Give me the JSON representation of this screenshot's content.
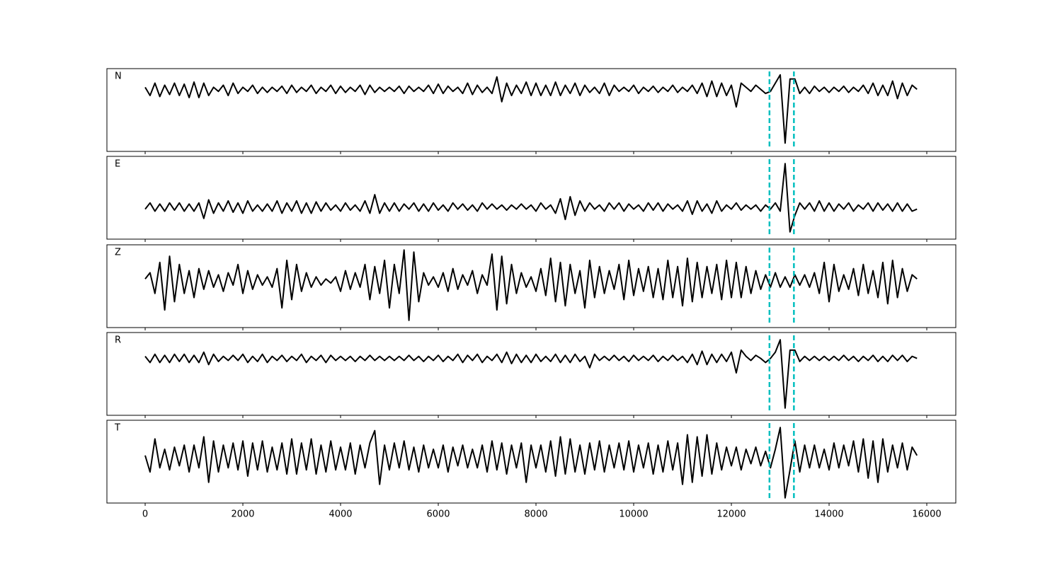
{
  "chart_data": {
    "type": "line",
    "line_color": "#000000",
    "vline_color": "#00bfbf",
    "xlim": [
      -783,
      16594
    ],
    "xticks": [
      0,
      2000,
      4000,
      6000,
      8000,
      10000,
      12000,
      14000,
      16000
    ],
    "vlines": [
      12780,
      13280
    ],
    "x": [
      0,
      100,
      200,
      300,
      400,
      500,
      600,
      700,
      800,
      900,
      1000,
      1100,
      1200,
      1300,
      1400,
      1500,
      1600,
      1700,
      1800,
      1900,
      2000,
      2100,
      2200,
      2300,
      2400,
      2500,
      2600,
      2700,
      2800,
      2900,
      3000,
      3100,
      3200,
      3300,
      3400,
      3500,
      3600,
      3700,
      3800,
      3900,
      4000,
      4100,
      4200,
      4300,
      4400,
      4500,
      4600,
      4700,
      4800,
      4900,
      5000,
      5100,
      5200,
      5300,
      5400,
      5500,
      5600,
      5700,
      5800,
      5900,
      6000,
      6100,
      6200,
      6300,
      6400,
      6500,
      6600,
      6700,
      6800,
      6900,
      7000,
      7100,
      7200,
      7300,
      7400,
      7500,
      7600,
      7700,
      7800,
      7900,
      8000,
      8100,
      8200,
      8300,
      8400,
      8500,
      8600,
      8700,
      8800,
      8900,
      9000,
      9100,
      9200,
      9300,
      9400,
      9500,
      9600,
      9700,
      9800,
      9900,
      10000,
      10100,
      10200,
      10300,
      10400,
      10500,
      10600,
      10700,
      10800,
      10900,
      11000,
      11100,
      11200,
      11300,
      11400,
      11500,
      11600,
      11700,
      11800,
      11900,
      12000,
      12100,
      12200,
      12300,
      12400,
      12500,
      12600,
      12700,
      12800,
      12900,
      13000,
      13100,
      13200,
      13300,
      13400,
      13500,
      13600,
      13700,
      13800,
      13900,
      14000,
      14100,
      14200,
      14300,
      14400,
      14500,
      14600,
      14700,
      14800,
      14900,
      15000,
      15100,
      15200,
      15300,
      15400,
      15500,
      15600,
      15700,
      15800
    ],
    "panels": [
      {
        "label": "N",
        "ylim": [
          -3,
          1
        ],
        "values": [
          0.1,
          -0.3,
          0.3,
          -0.35,
          0.2,
          -0.25,
          0.3,
          -0.3,
          0.25,
          -0.4,
          0.35,
          -0.4,
          0.3,
          -0.3,
          0.1,
          -0.1,
          0.2,
          -0.3,
          0.3,
          -0.2,
          0.1,
          -0.1,
          0.2,
          -0.2,
          0.1,
          -0.15,
          0.1,
          -0.1,
          0.15,
          -0.2,
          0.2,
          -0.15,
          0.1,
          -0.1,
          0.2,
          -0.2,
          0.1,
          -0.1,
          0.2,
          -0.2,
          0.15,
          -0.15,
          0.1,
          -0.1,
          0.2,
          -0.25,
          0.2,
          -0.15,
          0.1,
          -0.1,
          0.1,
          -0.1,
          0.15,
          -0.2,
          0.15,
          -0.1,
          0.1,
          -0.1,
          0.2,
          -0.2,
          0.25,
          -0.2,
          0.15,
          -0.1,
          0.1,
          -0.2,
          0.3,
          -0.25,
          0.2,
          -0.15,
          0.1,
          -0.2,
          0.6,
          -0.6,
          0.3,
          -0.3,
          0.2,
          -0.2,
          0.35,
          -0.3,
          0.3,
          -0.3,
          0.2,
          -0.3,
          0.35,
          -0.3,
          0.2,
          -0.2,
          0.3,
          -0.3,
          0.2,
          -0.15,
          0.1,
          -0.2,
          0.3,
          -0.3,
          0.2,
          -0.1,
          0.1,
          -0.1,
          0.2,
          -0.2,
          0.1,
          -0.1,
          0.15,
          -0.15,
          0.1,
          -0.1,
          0.2,
          -0.15,
          0.1,
          -0.1,
          0.2,
          -0.2,
          0.3,
          -0.35,
          0.4,
          -0.35,
          0.3,
          -0.3,
          0.2,
          -0.85,
          0.3,
          0.1,
          -0.1,
          0.2,
          0.0,
          -0.2,
          -0.1,
          0.3,
          0.7,
          -2.6,
          0.5,
          0.5,
          -0.2,
          0.1,
          -0.2,
          0.15,
          -0.1,
          0.1,
          -0.15,
          0.1,
          -0.1,
          0.15,
          -0.15,
          0.1,
          -0.1,
          0.2,
          -0.2,
          0.3,
          -0.3,
          0.2,
          -0.3,
          0.4,
          -0.45,
          0.3,
          -0.3,
          0.2,
          0.0
        ]
      },
      {
        "label": "E",
        "ylim": [
          -1.55,
          2.45
        ],
        "values": [
          -0.1,
          0.2,
          -0.2,
          0.15,
          -0.2,
          0.2,
          -0.15,
          0.2,
          -0.2,
          0.15,
          -0.2,
          0.2,
          -0.55,
          0.35,
          -0.3,
          0.2,
          -0.2,
          0.3,
          -0.25,
          0.2,
          -0.3,
          0.3,
          -0.2,
          0.1,
          -0.2,
          0.15,
          -0.2,
          0.3,
          -0.3,
          0.2,
          -0.2,
          0.3,
          -0.3,
          0.2,
          -0.3,
          0.25,
          -0.2,
          0.2,
          -0.15,
          0.1,
          -0.2,
          0.2,
          -0.15,
          0.1,
          -0.2,
          0.3,
          -0.3,
          0.6,
          -0.3,
          0.2,
          -0.2,
          0.2,
          -0.2,
          0.15,
          -0.1,
          0.2,
          -0.2,
          0.15,
          -0.2,
          0.2,
          -0.15,
          0.1,
          -0.2,
          0.2,
          -0.1,
          0.15,
          -0.15,
          0.1,
          -0.2,
          0.2,
          -0.1,
          0.15,
          -0.1,
          0.1,
          -0.15,
          0.1,
          -0.1,
          0.15,
          -0.1,
          0.1,
          -0.2,
          0.2,
          -0.1,
          0.1,
          -0.3,
          0.4,
          -0.6,
          0.5,
          -0.4,
          0.3,
          -0.2,
          0.2,
          -0.1,
          0.1,
          -0.2,
          0.2,
          -0.1,
          0.2,
          -0.2,
          0.15,
          -0.1,
          0.1,
          -0.2,
          0.2,
          -0.15,
          0.2,
          -0.2,
          0.15,
          -0.1,
          0.1,
          -0.2,
          0.3,
          -0.35,
          0.3,
          -0.2,
          0.15,
          -0.3,
          0.3,
          -0.2,
          0.1,
          -0.1,
          0.2,
          -0.15,
          0.1,
          -0.1,
          0.1,
          -0.2,
          0.1,
          -0.1,
          0.2,
          -0.2,
          2.1,
          -1.2,
          -0.4,
          0.2,
          -0.1,
          0.2,
          -0.2,
          0.3,
          -0.2,
          0.2,
          -0.2,
          0.15,
          -0.1,
          0.2,
          -0.2,
          0.1,
          -0.1,
          0.2,
          -0.2,
          0.2,
          -0.15,
          0.15,
          -0.2,
          0.2,
          -0.2,
          0.15,
          -0.2,
          -0.1
        ]
      },
      {
        "label": "Z",
        "ylim": [
          -2.25,
          1.75
        ],
        "values": [
          0.1,
          0.4,
          -0.6,
          0.9,
          -1.4,
          1.2,
          -1.0,
          0.8,
          -0.6,
          0.5,
          -0.8,
          0.6,
          -0.4,
          0.5,
          -0.3,
          0.3,
          -0.5,
          0.4,
          -0.2,
          0.8,
          -0.6,
          0.5,
          -0.4,
          0.3,
          -0.2,
          0.2,
          -0.3,
          0.6,
          -1.3,
          1.0,
          -0.9,
          0.8,
          -0.5,
          0.4,
          -0.3,
          0.2,
          -0.2,
          0.1,
          -0.1,
          0.2,
          -0.5,
          0.5,
          -0.4,
          0.4,
          -0.3,
          0.8,
          -0.9,
          0.7,
          -0.6,
          1.0,
          -1.3,
          0.8,
          -0.6,
          1.5,
          -1.9,
          1.4,
          -1.0,
          0.4,
          -0.2,
          0.2,
          -0.3,
          0.4,
          -0.5,
          0.6,
          -0.4,
          0.3,
          -0.2,
          0.5,
          -0.6,
          0.3,
          -0.2,
          1.3,
          -1.4,
          1.2,
          -1.1,
          0.8,
          -0.6,
          0.4,
          -0.3,
          0.2,
          -0.5,
          0.6,
          -0.7,
          1.1,
          -1.0,
          0.9,
          -1.2,
          0.8,
          -0.6,
          0.5,
          -1.3,
          1.0,
          -0.8,
          0.7,
          -0.6,
          0.5,
          -0.4,
          0.8,
          -0.9,
          1.0,
          -0.7,
          0.6,
          -0.5,
          0.7,
          -0.8,
          0.6,
          -0.9,
          1.0,
          -0.8,
          0.7,
          -1.2,
          1.1,
          -1.0,
          0.9,
          -0.8,
          0.7,
          -0.6,
          0.8,
          -0.9,
          1.0,
          -0.8,
          0.9,
          -0.8,
          0.7,
          -0.6,
          0.5,
          -0.4,
          0.3,
          -0.3,
          0.4,
          -0.3,
          0.2,
          -0.3,
          0.3,
          -0.2,
          0.3,
          -0.3,
          0.4,
          -0.6,
          0.9,
          -1.0,
          0.8,
          -0.5,
          0.3,
          -0.4,
          0.6,
          -0.7,
          0.8,
          -0.6,
          0.5,
          -0.8,
          0.9,
          -1.1,
          1.0,
          -0.8,
          0.6,
          -0.5,
          0.3,
          0.1
        ]
      },
      {
        "label": "R",
        "ylim": [
          -2.75,
          1.25
        ],
        "values": [
          0.1,
          -0.2,
          0.2,
          -0.2,
          0.15,
          -0.2,
          0.2,
          -0.15,
          0.2,
          -0.2,
          0.15,
          -0.2,
          0.3,
          -0.3,
          0.2,
          -0.15,
          0.1,
          -0.1,
          0.15,
          -0.1,
          0.2,
          -0.2,
          0.1,
          -0.15,
          0.2,
          -0.2,
          0.1,
          -0.1,
          0.15,
          -0.15,
          0.1,
          -0.1,
          0.2,
          -0.2,
          0.1,
          -0.1,
          0.15,
          -0.2,
          0.15,
          -0.1,
          0.1,
          -0.1,
          0.1,
          -0.15,
          0.1,
          -0.1,
          0.15,
          -0.1,
          0.1,
          -0.1,
          0.1,
          -0.1,
          0.1,
          -0.1,
          0.15,
          -0.1,
          0.1,
          -0.15,
          0.1,
          -0.1,
          0.15,
          -0.15,
          0.1,
          -0.1,
          0.2,
          -0.2,
          0.15,
          -0.1,
          0.2,
          -0.2,
          0.1,
          -0.1,
          0.2,
          -0.2,
          0.3,
          -0.25,
          0.2,
          -0.2,
          0.15,
          -0.2,
          0.2,
          -0.15,
          0.1,
          -0.15,
          0.2,
          -0.2,
          0.15,
          -0.2,
          0.2,
          -0.15,
          0.1,
          -0.45,
          0.2,
          -0.1,
          0.1,
          -0.1,
          0.15,
          -0.1,
          0.1,
          -0.15,
          0.15,
          -0.1,
          0.1,
          -0.1,
          0.15,
          -0.15,
          0.1,
          -0.1,
          0.15,
          -0.1,
          0.1,
          -0.2,
          0.2,
          -0.3,
          0.35,
          -0.3,
          0.2,
          -0.2,
          0.2,
          -0.15,
          0.3,
          -0.7,
          0.4,
          0.1,
          -0.1,
          0.15,
          0.0,
          -0.2,
          0.0,
          0.3,
          0.9,
          -2.4,
          0.4,
          0.4,
          -0.15,
          0.1,
          -0.1,
          0.1,
          -0.1,
          0.1,
          -0.1,
          0.1,
          -0.1,
          0.15,
          -0.1,
          0.1,
          -0.15,
          0.1,
          -0.1,
          0.15,
          -0.15,
          0.1,
          -0.15,
          0.15,
          -0.1,
          0.15,
          -0.15,
          0.1,
          0.0
        ]
      },
      {
        "label": "T",
        "ylim": [
          -2.2,
          1.8
        ],
        "values": [
          0.1,
          -0.7,
          0.9,
          -0.5,
          0.4,
          -0.6,
          0.5,
          -0.4,
          0.6,
          -0.7,
          0.6,
          -0.5,
          1.0,
          -1.2,
          0.8,
          -0.7,
          0.6,
          -0.5,
          0.7,
          -0.6,
          0.8,
          -0.9,
          0.7,
          -0.6,
          0.8,
          -0.7,
          0.5,
          -0.6,
          0.7,
          -0.8,
          0.9,
          -0.8,
          0.7,
          -0.6,
          0.9,
          -0.8,
          0.6,
          -0.7,
          0.8,
          -0.6,
          0.5,
          -0.6,
          0.7,
          -0.8,
          0.6,
          -0.5,
          0.7,
          1.3,
          -1.3,
          0.6,
          -0.6,
          0.7,
          -0.5,
          0.8,
          -0.6,
          0.5,
          -0.7,
          0.6,
          -0.5,
          0.4,
          -0.5,
          0.6,
          -0.7,
          0.5,
          -0.4,
          0.6,
          -0.5,
          0.4,
          -0.5,
          0.6,
          -0.7,
          0.8,
          -0.6,
          0.7,
          -0.8,
          0.6,
          -0.5,
          0.7,
          -1.2,
          0.6,
          -0.5,
          0.6,
          -0.7,
          0.8,
          -0.9,
          1.0,
          -0.8,
          0.9,
          -0.7,
          0.6,
          -0.8,
          0.7,
          -0.6,
          0.8,
          -0.7,
          0.6,
          -0.5,
          0.7,
          -0.6,
          0.8,
          -0.7,
          0.6,
          -0.5,
          0.7,
          -0.8,
          0.6,
          -0.7,
          0.8,
          -0.6,
          0.7,
          -1.3,
          1.1,
          -1.2,
          1.0,
          -0.9,
          1.1,
          -0.8,
          0.7,
          -0.6,
          0.5,
          -0.4,
          0.5,
          -0.6,
          0.4,
          -0.3,
          0.5,
          -0.4,
          0.3,
          -0.5,
          0.4,
          1.45,
          -1.95,
          -0.6,
          0.8,
          -0.7,
          0.6,
          -0.5,
          0.6,
          -0.5,
          0.4,
          -0.6,
          0.7,
          -0.5,
          0.6,
          -0.4,
          0.8,
          -0.7,
          0.9,
          -1.0,
          0.8,
          -1.2,
          0.9,
          -0.7,
          0.6,
          -0.5,
          0.7,
          -0.6,
          0.5,
          0.1
        ]
      }
    ]
  }
}
